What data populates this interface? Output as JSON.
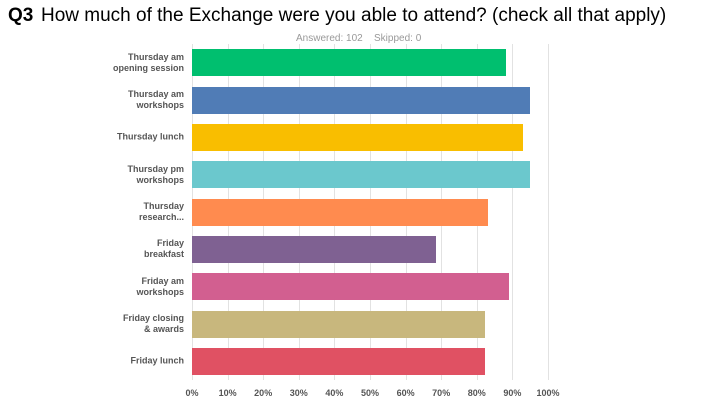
{
  "chart_data": {
    "type": "barh",
    "question_number": "Q3",
    "title": "How much of the Exchange were you able to attend? (check all that apply)",
    "answered": "Answered: 102",
    "skipped": "Skipped: 0",
    "categories": [
      "Thursday am\nopening session",
      "Thursday am\nworkshops",
      "Thursday lunch",
      "Thursday pm\nworkshops",
      "Thursday\nresearch...",
      "Friday\nbreakfast",
      "Friday am\nworkshops",
      "Friday closing\n& awards",
      "Friday lunch"
    ],
    "values": [
      88.2,
      94.9,
      93.0,
      94.9,
      83.1,
      68.5,
      89.0,
      82.3,
      82.3
    ],
    "colors": [
      "#00bf6f",
      "#507cb6",
      "#f9be00",
      "#6bc8cd",
      "#ff8b4f",
      "#7f6192",
      "#d25f90",
      "#c8b77d",
      "#e05163"
    ],
    "xlim": [
      0,
      100
    ],
    "xticks": [
      {
        "value": 0,
        "label": "0%"
      },
      {
        "value": 10,
        "label": "10%"
      },
      {
        "value": 20,
        "label": "20%"
      },
      {
        "value": 30,
        "label": "30%"
      },
      {
        "value": 40,
        "label": "40%"
      },
      {
        "value": 50,
        "label": "50%"
      },
      {
        "value": 60,
        "label": "60%"
      },
      {
        "value": 70,
        "label": "70%"
      },
      {
        "value": 80,
        "label": "80%"
      },
      {
        "value": 90,
        "label": "90%"
      },
      {
        "value": 100,
        "label": "100%"
      }
    ],
    "grid": true
  }
}
